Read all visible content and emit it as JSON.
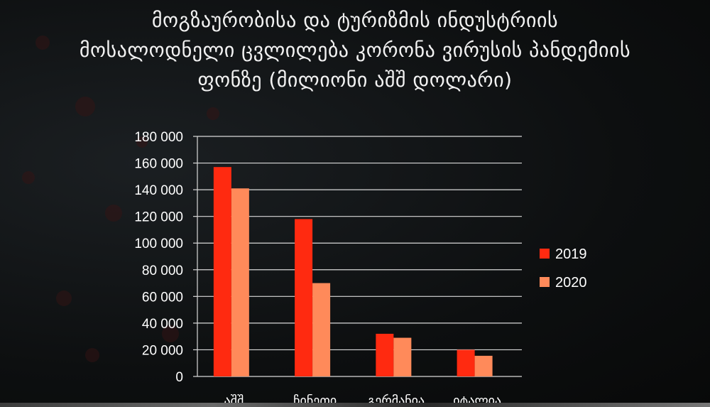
{
  "title_lines": [
    "მოგზაურობისა და ტურიზმის ინდუსტრიის",
    "მოსალოდნელი ცვლილება კორონა ვირუსის პანდემიის",
    "ფონზე (მილიონი აშშ დოლარი)"
  ],
  "chart_data": {
    "type": "bar",
    "title": "მოგზაურობისა და ტურიზმის ინდუსტრიის მოსალოდნელი ცვლილება კორონა ვირუსის პანდემიის ფონზე (მილიონი აშშ დოლარი)",
    "categories": [
      "აშშ",
      "ჩინეთი",
      "გერმანია",
      "იტალია"
    ],
    "series": [
      {
        "name": "2019",
        "color": "#ff2a10",
        "values": [
          157000,
          118000,
          32000,
          20000
        ]
      },
      {
        "name": "2020",
        "color": "#ff8a5a",
        "values": [
          141000,
          70000,
          29000,
          15500
        ]
      }
    ],
    "ylim": [
      0,
      180000
    ],
    "yticks": [
      0,
      20000,
      40000,
      60000,
      80000,
      100000,
      120000,
      140000,
      160000,
      180000
    ],
    "ytick_labels": [
      "0",
      "20 000",
      "40 000",
      "60 000",
      "80 000",
      "100 000",
      "120 000",
      "140 000",
      "160 000",
      "180 000"
    ],
    "grid": true,
    "legend": "right"
  }
}
